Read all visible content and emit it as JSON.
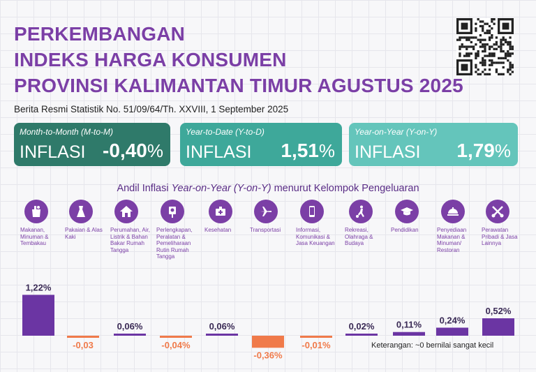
{
  "title_lines": [
    "PERKEMBANGAN",
    "INDEKS HARGA KONSUMEN",
    "PROVINSI KALIMANTAN TIMUR AGUSTUS 2025"
  ],
  "subtitle": "Berita Resmi Statistik No. 51/09/64/Th. XXVIII, 1 September 2025",
  "cards": [
    {
      "label": "Month-to-Month (M-to-M)",
      "word": "INFLASI",
      "value": "-0,40",
      "unit": "%",
      "color": "#2f7a6a"
    },
    {
      "label": "Year-to-Date (Y-to-D)",
      "word": "INFLASI",
      "value": "1,51",
      "unit": "%",
      "color": "#3ea89a"
    },
    {
      "label": "Year-on-Year (Y-on-Y)",
      "word": "INFLASI",
      "value": "1,79",
      "unit": "%",
      "color": "#64c5bb"
    }
  ],
  "chart_title_prefix": "Andil Inflasi ",
  "chart_title_italic": "Year-on-Year (Y-on-Y)",
  "chart_title_suffix": " menurut Kelompok Pengeluaran",
  "note": "Keterangan: ~0 bernilai sangat kecil",
  "colors": {
    "positive": "#6b35a3",
    "negative": "#f07a4a",
    "title": "#7b3fa6"
  },
  "chart_data": {
    "type": "bar",
    "title": "Andil Inflasi Year-on-Year (Y-on-Y) menurut Kelompok Pengeluaran",
    "categories": [
      "Makanan, Minuman & Tembakau",
      "Pakaian & Alas Kaki",
      "Perumahan, Air, Listrik & Bahan Bakar Rumah Tangga",
      "Perlengkapan, Peralatan & Pemeliharaan Rutin Rumah Tangga",
      "Kesehatan",
      "Transportasi",
      "Informasi, Komunikasi & Jasa Keuangan",
      "Rekreasi, Olahraga & Budaya",
      "Pendidikan",
      "Penyediaan Makanan & Minuman/ Restoran",
      "Perawatan Pribadi & Jasa Lainnya"
    ],
    "values": [
      1.22,
      -0.03,
      0.06,
      -0.04,
      0.06,
      -0.36,
      -0.01,
      0.02,
      0.11,
      0.24,
      0.52
    ],
    "labels": [
      "1,22%",
      "-0,03",
      "0,06%",
      "-0,04%",
      "0,06%",
      "-0,36%",
      "-0,01%",
      "0,02%",
      "0,11%",
      "0,24%",
      "0,52%"
    ],
    "icons": [
      "groceries-icon",
      "dress-icon",
      "house-icon",
      "appliance-icon",
      "first-aid-kit-icon",
      "airplane-icon",
      "smartphone-icon",
      "soccer-player-icon",
      "graduation-cap-icon",
      "food-tray-icon",
      "scissors-comb-icon"
    ]
  }
}
